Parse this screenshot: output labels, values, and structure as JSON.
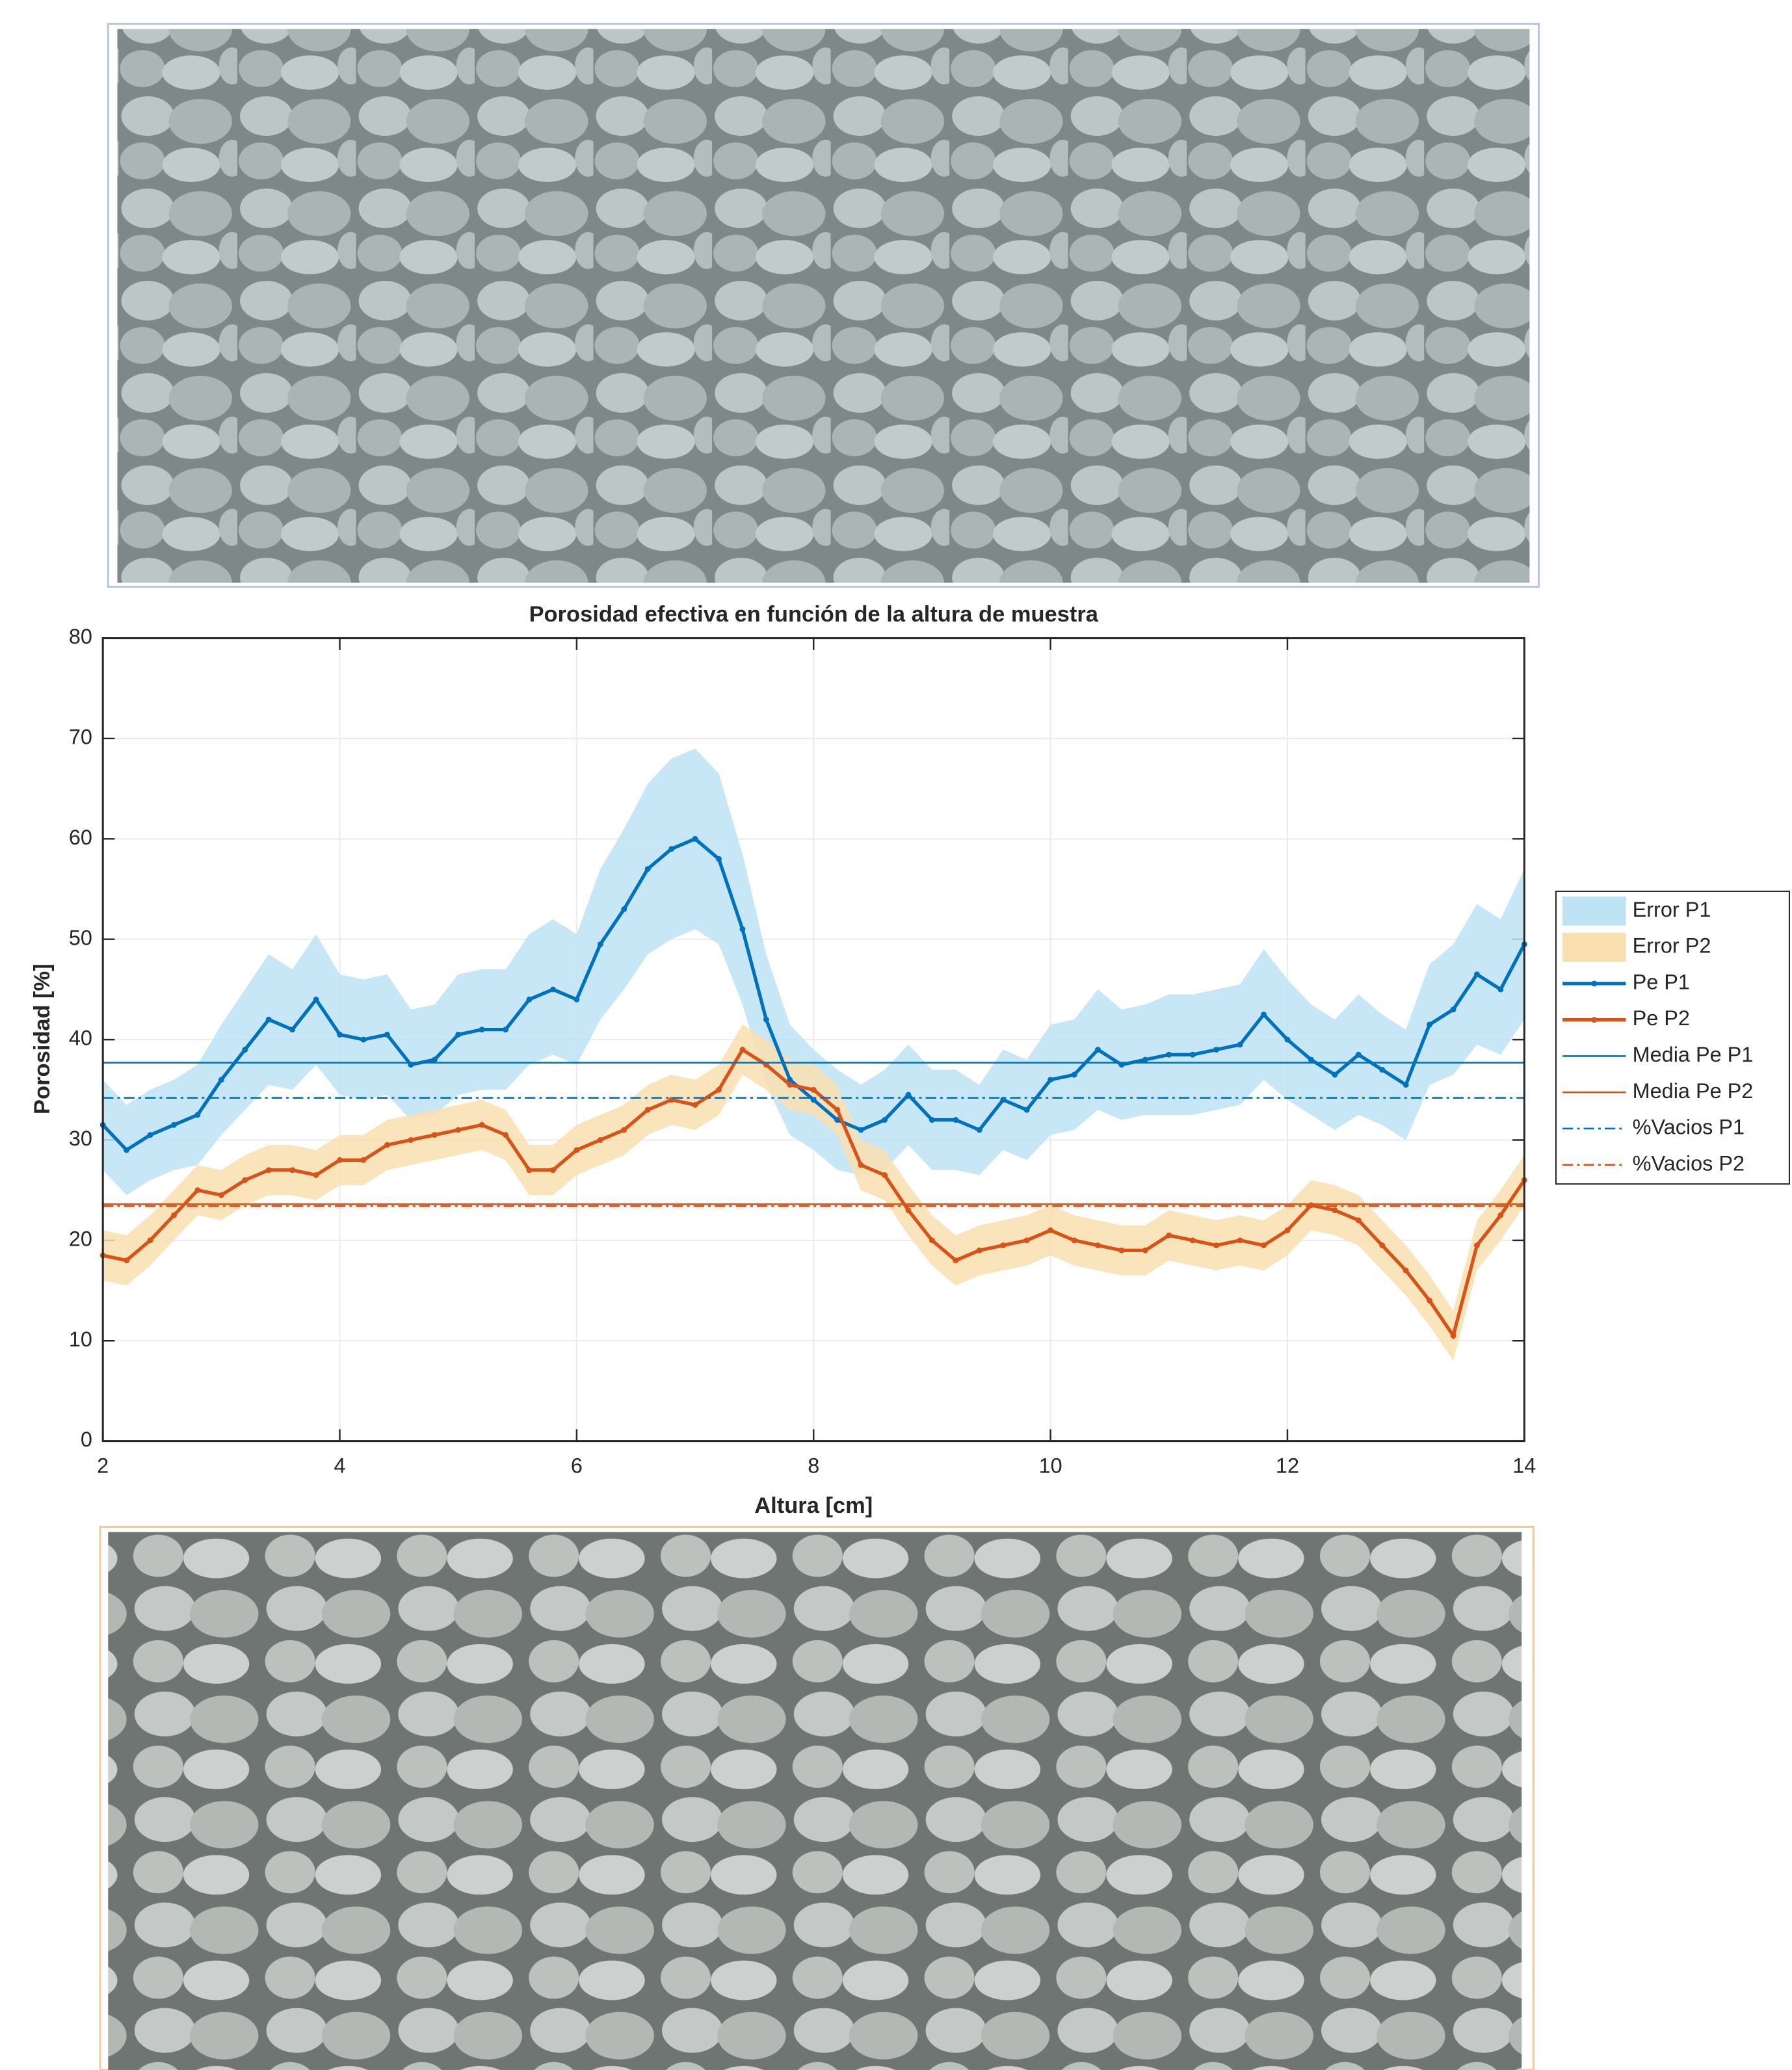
{
  "chart_data": {
    "type": "line",
    "title": "Porosidad efectiva en función de la altura de muestra",
    "x_label": "Altura [cm]",
    "y_label": "Porosidad [%]",
    "xlim": [
      2,
      14
    ],
    "xticks": [
      2,
      4,
      6,
      8,
      10,
      12,
      14
    ],
    "ylim": [
      0,
      80
    ],
    "yticks": [
      0,
      10,
      20,
      30,
      40,
      50,
      60,
      70,
      80
    ],
    "grid": true,
    "legend": "outside-right",
    "x": [
      2,
      2.2,
      2.4,
      2.6,
      2.8,
      3,
      3.2,
      3.4,
      3.6,
      3.8,
      4,
      4.2,
      4.4,
      4.6,
      4.8,
      5,
      5.2,
      5.4,
      5.6,
      5.8,
      6,
      6.2,
      6.4,
      6.6,
      6.8,
      7,
      7.2,
      7.4,
      7.6,
      7.8,
      8,
      8.2,
      8.4,
      8.6,
      8.8,
      9,
      9.2,
      9.4,
      9.6,
      9.8,
      10,
      10.2,
      10.4,
      10.6,
      10.8,
      11,
      11.2,
      11.4,
      11.6,
      11.8,
      12,
      12.2,
      12.4,
      12.6,
      12.8,
      13,
      13.2,
      13.4,
      13.6,
      13.8,
      14
    ],
    "series": [
      {
        "name": "Error P1",
        "kind": "band",
        "color": "#bde3f5",
        "lower": [
          27,
          24.5,
          26,
          27,
          27.5,
          30.5,
          33,
          35.5,
          35,
          37.5,
          34.5,
          34,
          34.5,
          32,
          32.5,
          34.5,
          35,
          35,
          37.5,
          38.5,
          37.5,
          42,
          45,
          48.5,
          50,
          51,
          49.5,
          43.5,
          35.5,
          30.5,
          29,
          27,
          26.5,
          27,
          29.5,
          27,
          27,
          26.5,
          29,
          28,
          30.5,
          31,
          33,
          32,
          32.5,
          32.5,
          32.5,
          33,
          33.5,
          36,
          34,
          32.5,
          31,
          32.5,
          31.5,
          30,
          35.5,
          36.5,
          39.5,
          38.5,
          42
        ],
        "upper": [
          36,
          33.5,
          35,
          36,
          37.5,
          41.5,
          45,
          48.5,
          47,
          50.5,
          46.5,
          46,
          46.5,
          43,
          43.5,
          46.5,
          47,
          47,
          50.5,
          52,
          50.5,
          57,
          61,
          65.5,
          68,
          69,
          66.5,
          58.5,
          48.5,
          41.5,
          39,
          37,
          35.5,
          37,
          39.5,
          37,
          37,
          35.5,
          39,
          38,
          41.5,
          42,
          45,
          43,
          43.5,
          44.5,
          44.5,
          45,
          45.5,
          49,
          46,
          43.5,
          42,
          44.5,
          42.5,
          41,
          47.5,
          49.5,
          53.5,
          52,
          57
        ]
      },
      {
        "name": "Error P2",
        "kind": "band",
        "color": "#f9dfaf",
        "lower": [
          16,
          15.5,
          17.5,
          20,
          22.5,
          22,
          23.5,
          24.5,
          24.5,
          24,
          25.5,
          25.5,
          27,
          27.5,
          28,
          28.5,
          29,
          28,
          24.5,
          24.5,
          26.5,
          27.5,
          28.5,
          30.5,
          31.5,
          31,
          32.5,
          36.5,
          35,
          33,
          32.5,
          30.5,
          25,
          24,
          20.5,
          17.5,
          15.5,
          16.5,
          17,
          17.5,
          18.5,
          17.5,
          17,
          16.5,
          16.5,
          18,
          17.5,
          17,
          17.5,
          17,
          18.5,
          21,
          20.5,
          19.5,
          17,
          14.5,
          11.5,
          8,
          17,
          20,
          23.5
        ],
        "upper": [
          21,
          20.5,
          22.5,
          25,
          27.5,
          27,
          28.5,
          29.5,
          29.5,
          29,
          30.5,
          30.5,
          32,
          32.5,
          33,
          33.5,
          34,
          33,
          29.5,
          29.5,
          31.5,
          32.5,
          33.5,
          35.5,
          36.5,
          36,
          37.5,
          41.5,
          40,
          38,
          37.5,
          35.5,
          30,
          29,
          25.5,
          22.5,
          20.5,
          21.5,
          22,
          22.5,
          23.5,
          22.5,
          22,
          21.5,
          21.5,
          23,
          22.5,
          22,
          22.5,
          22,
          23.5,
          26,
          25.5,
          24.5,
          22,
          19.5,
          16.5,
          13,
          22,
          25,
          28.5
        ]
      },
      {
        "name": "Pe P1",
        "kind": "line",
        "color": "#0072bd",
        "values": [
          31.5,
          29,
          30.5,
          31.5,
          32.5,
          36,
          39,
          42,
          41,
          44,
          40.5,
          40,
          40.5,
          37.5,
          38,
          40.5,
          41,
          41,
          44,
          45,
          44,
          49.5,
          53,
          57,
          59,
          60,
          58,
          51,
          42,
          36,
          34,
          32,
          31,
          32,
          34.5,
          32,
          32,
          31,
          34,
          33,
          36,
          36.5,
          39,
          37.5,
          38,
          38.5,
          38.5,
          39,
          39.5,
          42.5,
          40,
          38,
          36.5,
          38.5,
          37,
          35.5,
          41.5,
          43,
          46.5,
          45,
          49.5
        ]
      },
      {
        "name": "Pe P2",
        "kind": "line",
        "color": "#d95319",
        "values": [
          18.5,
          18,
          20,
          22.5,
          25,
          24.5,
          26,
          27,
          27,
          26.5,
          28,
          28,
          29.5,
          30,
          30.5,
          31,
          31.5,
          30.5,
          27,
          27,
          29,
          30,
          31,
          33,
          34,
          33.5,
          35,
          39,
          37.5,
          35.5,
          35,
          33,
          27.5,
          26.5,
          23,
          20,
          18,
          19,
          19.5,
          20,
          21,
          20,
          19.5,
          19,
          19,
          20.5,
          20,
          19.5,
          20,
          19.5,
          21,
          23.5,
          23,
          22,
          19.5,
          17,
          14,
          10.5,
          19.5,
          22.5,
          26
        ]
      },
      {
        "name": "Media Pe P1",
        "kind": "hline",
        "style": "solid",
        "color": "#0072bd",
        "value": 37.7
      },
      {
        "name": "Media Pe P2",
        "kind": "hline",
        "style": "solid",
        "color": "#d95319",
        "value": 23.6
      },
      {
        "name": "%Vacios P1",
        "kind": "hline",
        "style": "dashdot",
        "color": "#0072bd",
        "value": 34.2
      },
      {
        "name": "%Vacios P2",
        "kind": "hline",
        "style": "dashdot",
        "color": "#d95319",
        "value": 23.4
      }
    ]
  }
}
